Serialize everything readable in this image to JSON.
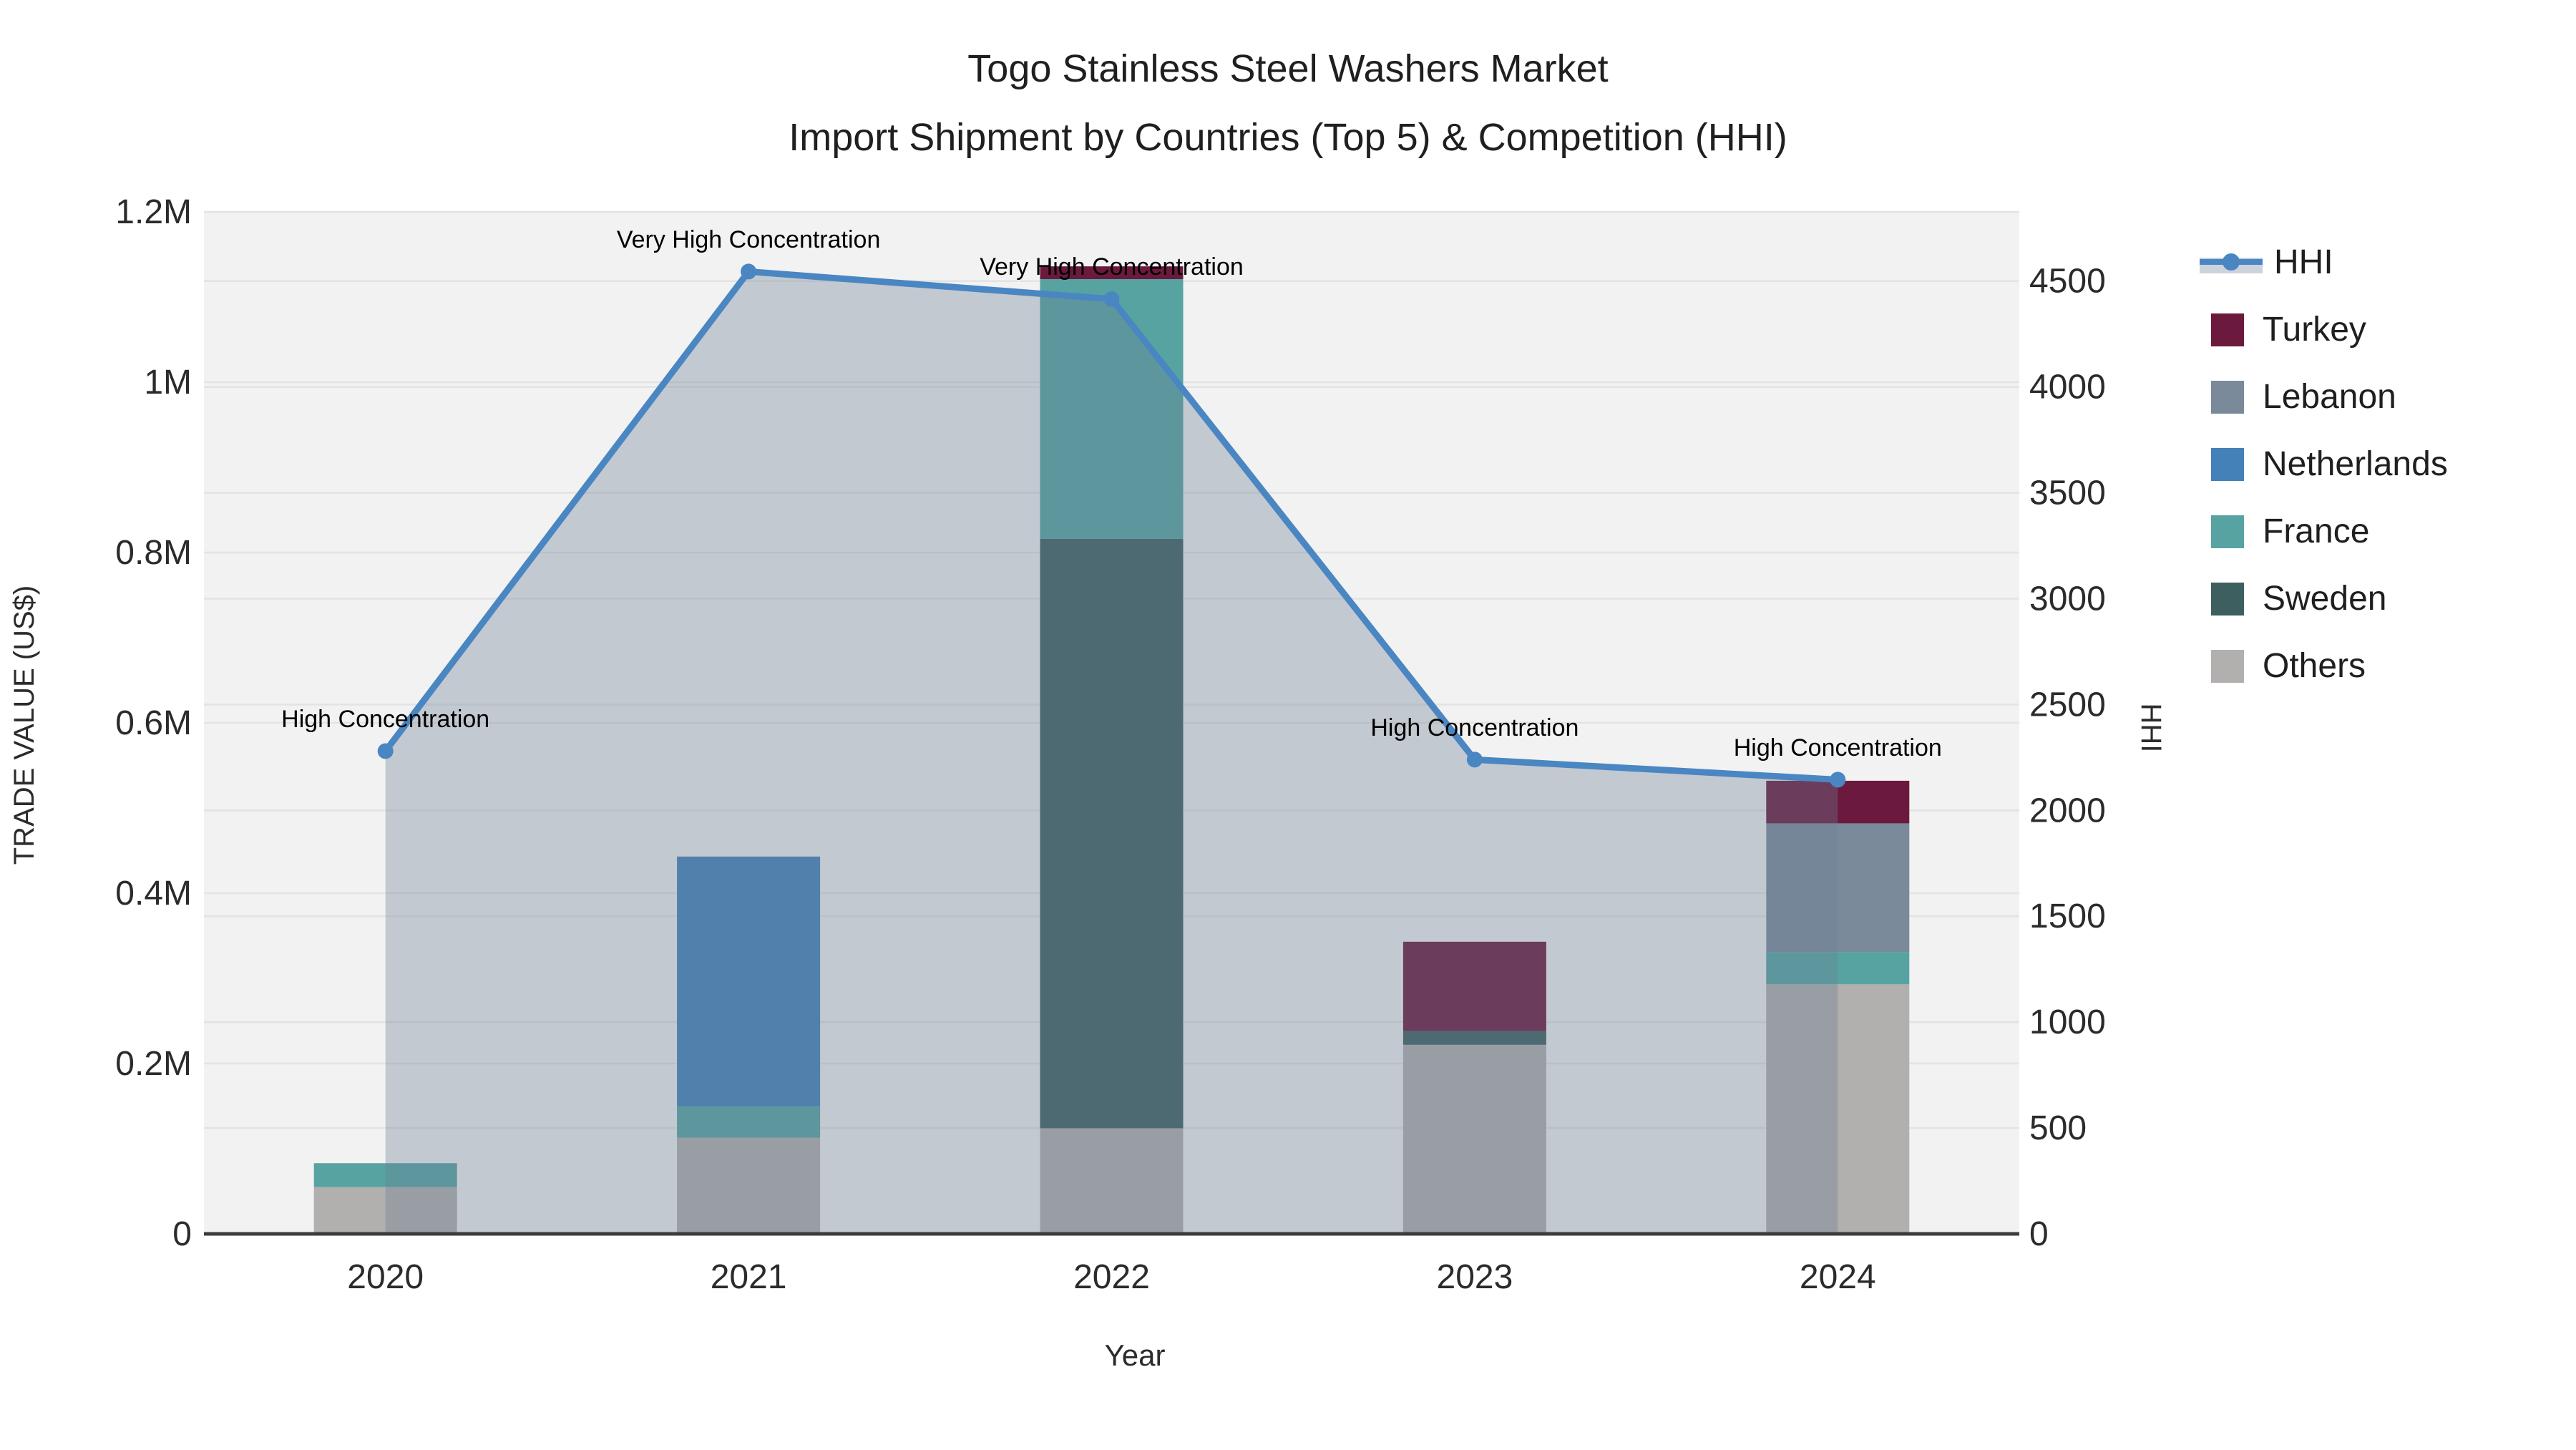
{
  "figure": {
    "title_line1": "Togo Stainless Steel Washers Market",
    "title_line2": "Import Shipment by Countries (Top 5) & Competition (HHI)"
  },
  "chart_data": {
    "type": "bar+line",
    "title": "Togo Stainless Steel Washers Market — Import Shipment by Countries (Top 5) & Competition (HHI)",
    "xlabel": "Year",
    "ylabel_left": "TRADE VALUE (US$)",
    "ylabel_right": "HHI",
    "categories": [
      "2020",
      "2021",
      "2022",
      "2023",
      "2024"
    ],
    "bar_value_unit": "US$",
    "series": [
      {
        "name": "Turkey",
        "color": "#6b1a3d",
        "values": [
          0,
          0,
          15000,
          105000,
          50000
        ]
      },
      {
        "name": "Lebanon",
        "color": "#7b8a9b",
        "values": [
          0,
          0,
          0,
          0,
          151000
        ]
      },
      {
        "name": "Netherlands",
        "color": "#4381b8",
        "values": [
          0,
          293000,
          0,
          0,
          0
        ]
      },
      {
        "name": "France",
        "color": "#57a3a2",
        "values": [
          28000,
          37000,
          305000,
          0,
          38000
        ]
      },
      {
        "name": "Sweden",
        "color": "#3d5f60",
        "values": [
          0,
          0,
          692000,
          16000,
          0
        ]
      },
      {
        "name": "Others",
        "color": "#b1b0ae",
        "values": [
          55000,
          113000,
          124000,
          222000,
          293000
        ]
      }
    ],
    "stack_order_bottom_to_top": [
      "Others",
      "Sweden",
      "France",
      "Netherlands",
      "Lebanon",
      "Turkey"
    ],
    "line_series": {
      "name": "HHI",
      "color": "#4a86c2",
      "area_fill": "rgba(108,125,150,0.35)",
      "values": [
        2280,
        4545,
        4415,
        2240,
        2145
      ],
      "annotations": [
        "High Concentration",
        "Very High Concentration",
        "Very High Concentration",
        "High Concentration",
        "High Concentration"
      ]
    },
    "y_left": {
      "min": 0,
      "max": 1200000,
      "ticks": [
        {
          "v": 0,
          "label": "0"
        },
        {
          "v": 200000,
          "label": "0.2M"
        },
        {
          "v": 400000,
          "label": "0.4M"
        },
        {
          "v": 600000,
          "label": "0.6M"
        },
        {
          "v": 800000,
          "label": "0.8M"
        },
        {
          "v": 1000000,
          "label": "1M"
        },
        {
          "v": 1200000,
          "label": "1.2M"
        }
      ]
    },
    "y_right": {
      "min": 0,
      "max": 4827,
      "ticks": [
        {
          "v": 0,
          "label": "0"
        },
        {
          "v": 500,
          "label": "500"
        },
        {
          "v": 1000,
          "label": "1000"
        },
        {
          "v": 1500,
          "label": "1500"
        },
        {
          "v": 2000,
          "label": "2000"
        },
        {
          "v": 2500,
          "label": "2500"
        },
        {
          "v": 3000,
          "label": "3000"
        },
        {
          "v": 3500,
          "label": "3500"
        },
        {
          "v": 4000,
          "label": "4000"
        },
        {
          "v": 4500,
          "label": "4500"
        }
      ]
    },
    "legend_position": "right",
    "grid": true,
    "plot_bg": "#f2f2f2",
    "grid_color": "#e3e3e3",
    "axis_line_color": "#3c3c3c",
    "tick_color": "#2b2b2b"
  }
}
